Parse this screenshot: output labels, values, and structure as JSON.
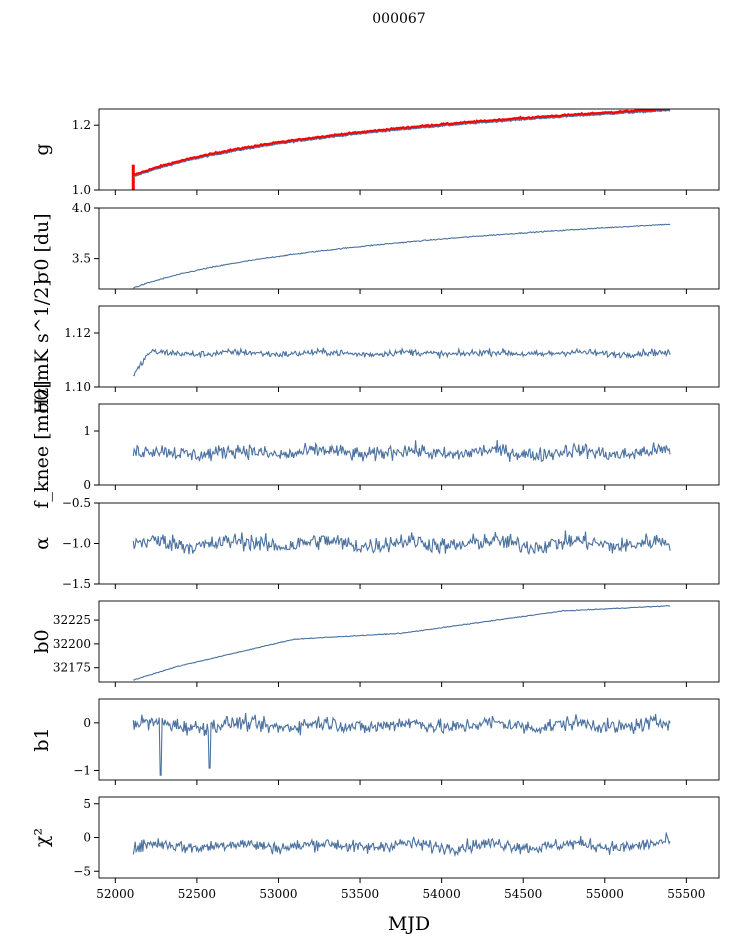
{
  "figure": {
    "title": "000067",
    "xlabel": "MJD",
    "line_color": "#4c72a0",
    "overlay_color": "#ff0000"
  },
  "chart_data": [
    {
      "type": "line",
      "ylabel": "g",
      "ylim": [
        1.0,
        1.25
      ],
      "yticks": [
        1.0,
        1.2
      ],
      "ytick_labels": [
        "1.0",
        "1.2"
      ],
      "xlim": [
        51900,
        55700
      ],
      "shape": "log",
      "start": 1.04,
      "end": 1.245,
      "noise": 0.002,
      "has_overlay": true,
      "overlay_series": "g (red)"
    },
    {
      "type": "line",
      "ylabel": "σ0 [du]",
      "ylim": [
        3.2,
        4.0
      ],
      "yticks": [
        3.5,
        4.0
      ],
      "ytick_labels": [
        "3.5",
        "4.0"
      ],
      "xlim": [
        51900,
        55700
      ],
      "shape": "log",
      "start": 3.21,
      "end": 3.84,
      "noise": 0.005
    },
    {
      "type": "line",
      "ylabel": "σ0[mK s^1/2]",
      "ylim": [
        1.1,
        1.13
      ],
      "yticks": [
        1.1,
        1.12
      ],
      "ytick_labels": [
        "1.10",
        "1.12"
      ],
      "xlim": [
        51900,
        55700
      ],
      "shape": "flat",
      "start": 1.104,
      "end": 1.112,
      "level": 1.1125,
      "noise": 0.0012
    },
    {
      "type": "line",
      "ylabel": "f_knee [mHz]",
      "ylim": [
        0,
        1.5
      ],
      "yticks": [
        0,
        1
      ],
      "ytick_labels": [
        "0",
        "1"
      ],
      "xlim": [
        51900,
        55700
      ],
      "shape": "flat",
      "start": 0.6,
      "end": 0.6,
      "level": 0.6,
      "noise": 0.13
    },
    {
      "type": "line",
      "ylabel": "α",
      "ylim": [
        -1.5,
        -0.5
      ],
      "yticks": [
        -1.5,
        -1.0,
        -0.5
      ],
      "ytick_labels": [
        "−1.5",
        "−1.0",
        "−0.5"
      ],
      "xlim": [
        51900,
        55700
      ],
      "shape": "flat",
      "start": -1.0,
      "end": -1.0,
      "level": -1.0,
      "noise": 0.1
    },
    {
      "type": "line",
      "ylabel": "b0",
      "ylim": [
        32160,
        32245
      ],
      "yticks": [
        32175,
        32200,
        32225
      ],
      "ytick_labels": [
        "32175",
        "32200",
        "32225"
      ],
      "xlim": [
        51900,
        55700
      ],
      "shape": "b0",
      "start": 32162,
      "end": 32240,
      "noise": 0.4
    },
    {
      "type": "line",
      "ylabel": "b1",
      "ylim": [
        -1.2,
        0.5
      ],
      "yticks": [
        -1,
        0
      ],
      "ytick_labels": [
        "−1",
        "0"
      ],
      "xlim": [
        51900,
        55700
      ],
      "shape": "flat",
      "start": 0,
      "end": 0,
      "level": -0.05,
      "noise": 0.15,
      "spikes": [
        {
          "x": 52280,
          "y": -1.1
        },
        {
          "x": 52580,
          "y": -0.95
        }
      ]
    },
    {
      "type": "line",
      "ylabel": "χ²",
      "ylim": [
        -6,
        6
      ],
      "yticks": [
        -5,
        0,
        5
      ],
      "ytick_labels": [
        "−5",
        "0",
        "5"
      ],
      "xlim": [
        51900,
        55700
      ],
      "shape": "flat",
      "start": -1.8,
      "end": -0.7,
      "level": -1.2,
      "noise": 0.9,
      "xticks": [
        52000,
        52500,
        53000,
        53500,
        54000,
        54500,
        55000,
        55500
      ],
      "xtick_labels": [
        "52000",
        "52500",
        "53000",
        "53500",
        "54000",
        "54500",
        "55000",
        "55500"
      ]
    }
  ],
  "series_x_range": [
    52110,
    55400
  ]
}
